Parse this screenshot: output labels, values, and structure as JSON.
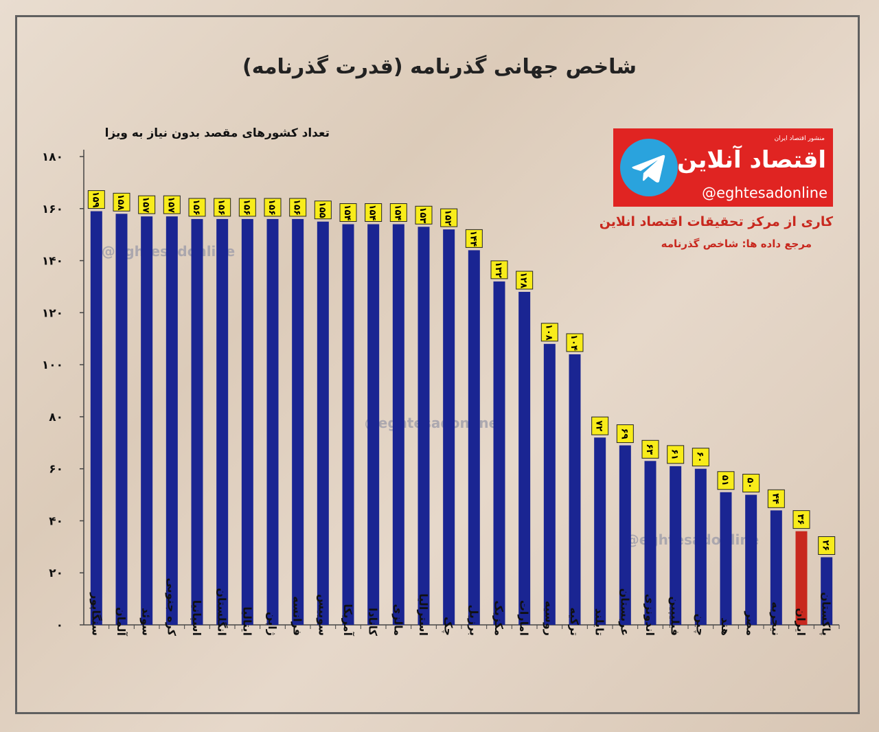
{
  "title": "شاخص جهانی گذرنامه (قدرت گذرنامه)",
  "logo": {
    "publisher_label": "منشور اقتصاد ایران",
    "name": "اقتصاد آنلاین",
    "handle": "@eghtesadonline",
    "icon": "telegram-icon",
    "color": "#e02422"
  },
  "credit": "کاری از مرکز تحقیقات اقتصاد انلاین",
  "source": "مرجع داده ها: شاخص گذرنامه",
  "watermark": "@eghtesadonline",
  "colors": {
    "bar": "#1a2592",
    "highlight": "#c8281e",
    "label_bg": "#f8ec1a"
  },
  "chart_data": {
    "type": "bar",
    "ylabel": "تعداد کشورهای مقصد بدون نیاز به ویزا",
    "ylim": [
      0,
      180
    ],
    "ytick_labels": [
      "۰",
      "۲۰",
      "۴۰",
      "۶۰",
      "۸۰",
      "۱۰۰",
      "۱۲۰",
      "۱۴۰",
      "۱۶۰",
      "۱۸۰"
    ],
    "categories": [
      "سنگاپور",
      "آلمان",
      "سوئد",
      "کره جنوبی",
      "اسپانیا",
      "انگلستان",
      "ایتالیا",
      "ژاپن",
      "فرانسه",
      "سوییس",
      "آمریکا",
      "کانادا",
      "مالزی",
      "استرالیا",
      "چک",
      "برزیل",
      "مکزیک",
      "امارات",
      "روسیه",
      "ترکیه",
      "تایلند",
      "عربستان",
      "اندونزی",
      "فیلیپین",
      "چین",
      "هند",
      "مصر",
      "نیجریه",
      "ایران",
      "پاکستان"
    ],
    "values": [
      159,
      158,
      157,
      157,
      156,
      156,
      156,
      156,
      156,
      155,
      154,
      154,
      154,
      153,
      152,
      144,
      132,
      128,
      108,
      104,
      72,
      69,
      63,
      61,
      60,
      51,
      50,
      44,
      36,
      26
    ],
    "value_labels": [
      "۱۵۹",
      "۱۵۸",
      "۱۵۷",
      "۱۵۷",
      "۱۵۶",
      "۱۵۶",
      "۱۵۶",
      "۱۵۶",
      "۱۵۶",
      "۱۵۵",
      "۱۵۴",
      "۱۵۴",
      "۱۵۴",
      "۱۵۳",
      "۱۵۲",
      "۱۴۴",
      "۱۳۲",
      "۱۲۸",
      "۱۰۸",
      "۱۰۴",
      "۷۲",
      "۶۹",
      "۶۳",
      "۶۱",
      "۶۰",
      "۵۱",
      "۵۰",
      "۴۴",
      "۳۶",
      "۲۶"
    ],
    "highlight_category": "ایران",
    "grid": false,
    "legend": "none"
  }
}
